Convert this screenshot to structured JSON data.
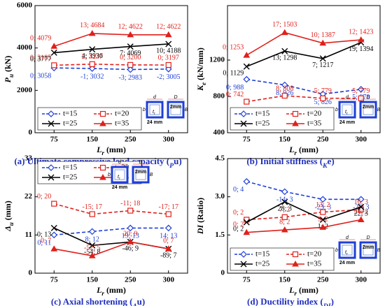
{
  "chart_data": [
    {
      "type": "line",
      "caption": [
        "(a) Ultimate compressive load capacity (",
        "P",
        "u",
        ")"
      ],
      "xlabel": [
        "L",
        "r",
        " (mm)"
      ],
      "ylabel": [
        "P",
        "u",
        " (kN)"
      ],
      "categories": [
        "75",
        "150",
        "250",
        "300"
      ],
      "ylim": [
        0,
        6000
      ],
      "yticks": [
        0,
        2000,
        4000,
        6000
      ],
      "legend": "lower left",
      "annotations": [
        "d",
        "b",
        "t",
        "r",
        "24 mm",
        "D",
        "B",
        "2mm"
      ],
      "series": [
        {
          "name": "t=15",
          "color": "#1f3fd6",
          "marker": "diamond",
          "dashed": true,
          "values": [
            3058,
            3032,
            2983,
            3005
          ],
          "value_labels": [
            "0; 3058",
            "-1; 3032",
            "-3; 2983",
            "-2; 3005"
          ]
        },
        {
          "name": "t=20",
          "color": "#e0201b",
          "marker": "square",
          "dashed": true,
          "values": [
            3185,
            3237,
            3200,
            3197
          ],
          "value_labels": [
            "0; 3185",
            "2; 3237",
            "0; 3200",
            "0; 3197"
          ]
        },
        {
          "name": "t=25",
          "color": "#000000",
          "marker": "x",
          "dashed": false,
          "values": [
            3777,
            3936,
            4069,
            4188
          ],
          "value_labels": [
            "0; 3777",
            "4; 3936",
            "7; 4069",
            "10; 4188"
          ]
        },
        {
          "name": "t=35",
          "color": "#e0201b",
          "marker": "triangle",
          "dashed": false,
          "values": [
            4079,
            4684,
            4622,
            4622
          ],
          "value_labels": [
            "0; 4079",
            "13; 4684",
            "12; 4622",
            "12; 4622"
          ]
        }
      ]
    },
    {
      "type": "line",
      "caption": [
        "(b) Initial stiffness (",
        "K",
        "e",
        ")"
      ],
      "xlabel": [
        "L",
        "r",
        " (mm)"
      ],
      "ylabel": [
        "K",
        "e",
        " (kN/mm)"
      ],
      "categories": [
        "75",
        "150",
        "250",
        "300"
      ],
      "ylim": [
        400,
        1800
      ],
      "yticks": [
        400,
        800,
        1200
      ],
      "legend": "lower left",
      "annotations": [
        "d",
        "b",
        "t",
        "r",
        "24 mm",
        "D",
        "B",
        "2mm"
      ],
      "series": [
        {
          "name": "t=15",
          "color": "#1f3fd6",
          "marker": "diamond",
          "dashed": true,
          "values": [
            988,
            926,
            826,
            878
          ],
          "value_labels": [
            "0; 988",
            "8; 926",
            "5; 826",
            "5; 878"
          ]
        },
        {
          "name": "t=20",
          "color": "#e0201b",
          "marker": "square",
          "dashed": true,
          "values": [
            742,
            808,
            779,
            779
          ],
          "value_labels": [
            "0; 742",
            "8; 808",
            "5; 779",
            "5; 779"
          ]
        },
        {
          "name": "t=25",
          "color": "#000000",
          "marker": "x",
          "dashed": false,
          "values": [
            1129,
            1298,
            1217,
            1394
          ],
          "value_labels": [
            "0; 1129",
            "13; 1298",
            "7; 1217",
            "19; 1394"
          ]
        },
        {
          "name": "t=35",
          "color": "#e0201b",
          "marker": "triangle",
          "dashed": false,
          "values": [
            1253,
            1503,
            1387,
            1423
          ],
          "value_labels": [
            "0; 1253",
            "17; 1503",
            "10; 1387",
            "12; 1423"
          ]
        }
      ]
    },
    {
      "type": "line",
      "caption": [
        "(c) Axial shortening (",
        "Δ",
        "u",
        ")"
      ],
      "xlabel": [
        "L",
        "r",
        " (mm)"
      ],
      "ylabel": [
        "Δ",
        "u",
        " (mm)"
      ],
      "categories": [
        "75",
        "150",
        "250",
        "300"
      ],
      "ylim": [
        0,
        33
      ],
      "yticks": [
        0,
        11,
        22,
        33
      ],
      "legend": "upper left",
      "annotations": [
        "d",
        "b",
        "t",
        "r",
        "24 mm",
        "D",
        "B",
        "2mm"
      ],
      "series": [
        {
          "name": "t=15",
          "color": "#1f3fd6",
          "marker": "diamond",
          "dashed": true,
          "values": [
            11,
            12,
            13,
            13
          ],
          "value_labels": [
            "0; 11",
            "8; 12",
            "19; 13",
            "14; 13"
          ]
        },
        {
          "name": "t=20",
          "color": "#e0201b",
          "marker": "square",
          "dashed": true,
          "values": [
            20,
            17,
            18,
            17
          ],
          "value_labels": [
            "0; 20",
            "-15; 17",
            "-11; 18",
            "-17; 17"
          ]
        },
        {
          "name": "t=25",
          "color": "#000000",
          "marker": "x",
          "dashed": false,
          "values": [
            13,
            8,
            9,
            7
          ],
          "value_labels": [
            "0; 13",
            "-54; 8",
            "-46; 9",
            "-89; 7"
          ]
        },
        {
          "name": "t=35",
          "color": "#e0201b",
          "marker": "triangle",
          "dashed": false,
          "values": [
            7,
            5,
            9,
            7
          ],
          "value_labels": [
            "0; 7",
            "-52; 5",
            "20; 9",
            "0; 7"
          ]
        }
      ]
    },
    {
      "type": "line",
      "caption": [
        "(d) Ductility index (",
        "DI",
        "",
        ")"
      ],
      "xlabel": [
        "L",
        "r",
        " (mm)"
      ],
      "ylabel": [
        "DI",
        "",
        " (Ratio)"
      ],
      "categories": [
        "75",
        "150",
        "250",
        "300"
      ],
      "ylim": [
        0,
        4.5
      ],
      "yticks": [
        0,
        1.5,
        {
          "value": 3,
          "label": "3.0"
        },
        4.5
      ],
      "legend": "lower left",
      "annotations": [
        "d",
        "b",
        "t",
        "r",
        "24 mm",
        "D",
        "B",
        "2mm"
      ],
      "series": [
        {
          "name": "t=15",
          "color": "#1f3fd6",
          "marker": "diamond",
          "dashed": true,
          "values": [
            3.6,
            3.2,
            2.9,
            2.9
          ],
          "value_labels": [
            "0; 4",
            "-14; 3",
            "-23; 3",
            "-22; 3"
          ]
        },
        {
          "name": "t=20",
          "color": "#e0201b",
          "marker": "square",
          "dashed": true,
          "values": [
            2.1,
            2.2,
            2.4,
            2.5
          ],
          "value_labels": [
            "0; 2",
            "7; 2",
            "13; 2",
            "16; 3"
          ]
        },
        {
          "name": "t=25",
          "color": "#000000",
          "marker": "x",
          "dashed": false,
          "values": [
            2.0,
            2.8,
            2.1,
            2.6
          ],
          "value_labels": [
            "0; 2",
            "28; 3",
            "1; 2",
            "22; 3"
          ]
        },
        {
          "name": "t=35",
          "color": "#e0201b",
          "marker": "triangle",
          "dashed": false,
          "values": [
            1.6,
            1.7,
            1.8,
            2.1
          ],
          "value_labels": [
            "0; 2",
            "8; 2",
            "9; 2",
            "24; 2"
          ]
        }
      ]
    }
  ]
}
